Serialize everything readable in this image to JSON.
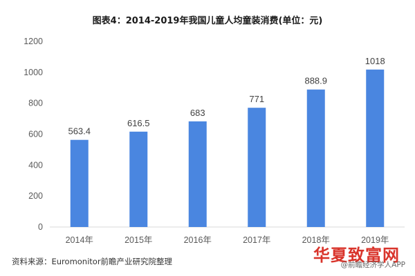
{
  "chart_data": {
    "type": "bar",
    "title": "图表4：2014-2019年我国儿童人均童装消费(单位：元)",
    "categories": [
      "2014年",
      "2015年",
      "2016年",
      "2017年",
      "2018年",
      "2019年"
    ],
    "values": [
      563.4,
      616.5,
      683,
      771,
      888.9,
      1018
    ],
    "data_labels": [
      "563.4",
      "616.5",
      "683",
      "771",
      "888.9",
      "1018"
    ],
    "ylim": [
      0,
      1200
    ],
    "yticks": [
      0,
      200,
      400,
      600,
      800,
      1000,
      1200
    ],
    "grid": false,
    "legend": "none",
    "bar_color": "#4a86e0"
  },
  "source": "资料来源：Euromonitor前瞻产业研究院整理",
  "watermark": {
    "brand": "华夏致富网",
    "app": "@前瞻经济学人APP"
  }
}
